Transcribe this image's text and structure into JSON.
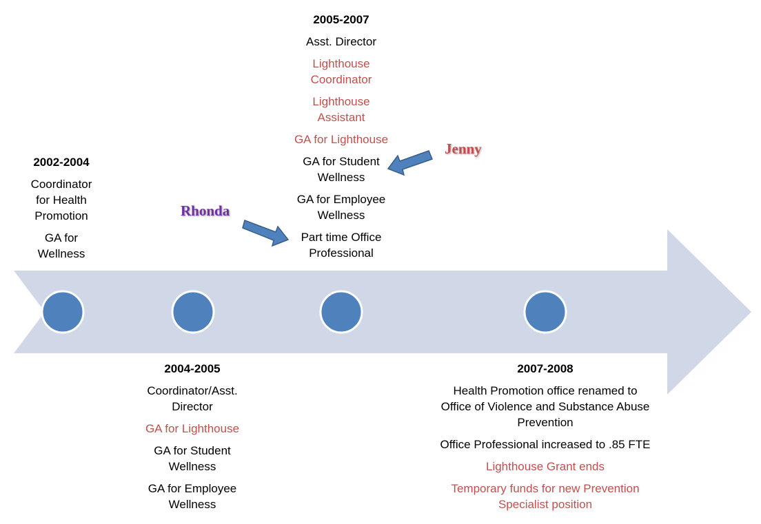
{
  "periods": [
    {
      "year": "2002-2004",
      "items": [
        {
          "lines": [
            "Coordinator",
            "for Health",
            "Promotion"
          ],
          "color": "#000000"
        },
        {
          "lines": [
            "GA for",
            "Wellness"
          ],
          "color": "#000000"
        }
      ]
    },
    {
      "year": "2004-2005",
      "items": [
        {
          "lines": [
            "Coordinator/Asst.",
            "Director"
          ],
          "color": "#000000"
        },
        {
          "lines": [
            "GA for Lighthouse"
          ],
          "color": "#c0504d"
        },
        {
          "lines": [
            "GA for Student",
            "Wellness"
          ],
          "color": "#000000"
        },
        {
          "lines": [
            "GA for Employee",
            "Wellness"
          ],
          "color": "#000000"
        }
      ]
    },
    {
      "year": "2005-2007",
      "items": [
        {
          "lines": [
            "Asst. Director"
          ],
          "color": "#000000"
        },
        {
          "lines": [
            "Lighthouse",
            "Coordinator"
          ],
          "color": "#c0504d"
        },
        {
          "lines": [
            "Lighthouse",
            "Assistant"
          ],
          "color": "#c0504d"
        },
        {
          "lines": [
            "GA for Lighthouse"
          ],
          "color": "#c0504d"
        },
        {
          "lines": [
            "GA for Student",
            "Wellness"
          ],
          "color": "#000000"
        },
        {
          "lines": [
            "GA for Employee",
            "Wellness"
          ],
          "color": "#000000"
        },
        {
          "lines": [
            "Part time Office",
            "Professional"
          ],
          "color": "#000000"
        }
      ]
    },
    {
      "year": "2007-2008",
      "items": [
        {
          "lines": [
            "Health Promotion office renamed to",
            "Office of Violence and Substance Abuse",
            "Prevention"
          ],
          "color": "#000000"
        },
        {
          "lines": [
            "Office Professional increased to .85 FTE"
          ],
          "color": "#000000"
        },
        {
          "lines": [
            "Lighthouse Grant ends"
          ],
          "color": "#c0504d"
        },
        {
          "lines": [
            "Temporary funds for new Prevention",
            "Specialist position"
          ],
          "color": "#c0504d"
        }
      ]
    }
  ],
  "people": [
    {
      "name": "Rhonda",
      "color": "#7030a0"
    },
    {
      "name": "Jenny",
      "color": "#c0504d"
    }
  ]
}
